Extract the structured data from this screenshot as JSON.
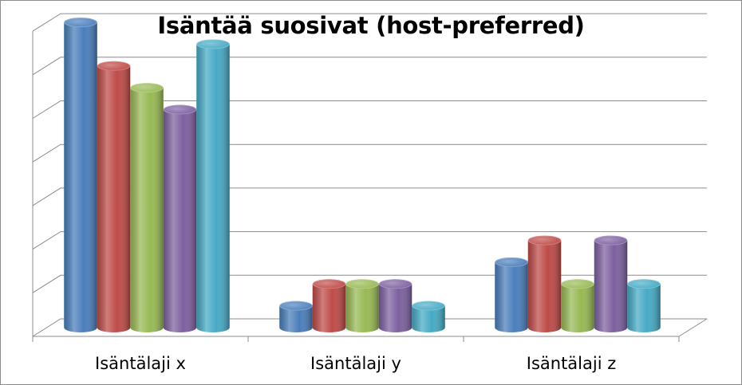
{
  "chart_data": {
    "type": "bar",
    "title": "Isäntää suosivat (host-preferred)",
    "categories": [
      "Isäntälaji x",
      "Isäntälaji y",
      "Isäntälaji z"
    ],
    "series": [
      {
        "values": [
          7.0,
          0.5,
          1.5
        ],
        "color": "#4a7ebb"
      },
      {
        "values": [
          6.0,
          1.0,
          2.0
        ],
        "color": "#be4b48"
      },
      {
        "values": [
          5.5,
          1.0,
          1.0
        ],
        "color": "#98b954"
      },
      {
        "values": [
          5.0,
          1.0,
          2.0
        ],
        "color": "#7d60a0"
      },
      {
        "values": [
          6.5,
          0.5,
          1.0
        ],
        "color": "#46aac5"
      }
    ],
    "ylim": [
      0,
      7
    ],
    "grid": true,
    "legend": "none",
    "tick_labels_visible": false
  }
}
